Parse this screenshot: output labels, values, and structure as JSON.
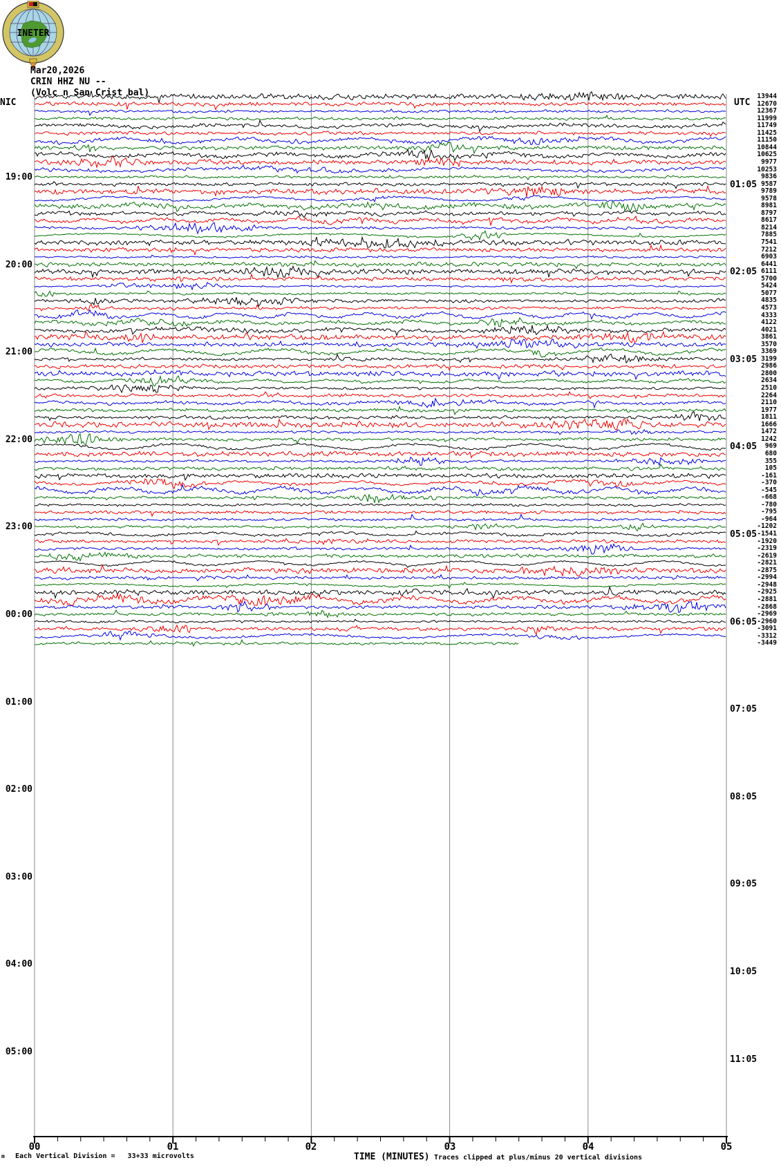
{
  "header": {
    "date": "Mar20,2026",
    "station": "CRIN HHZ NU --",
    "description": "(Volc n San Crist bal)",
    "logo_text": "INETER"
  },
  "left_axis": {
    "region_label": "NIC",
    "hour_labels": [
      "19:00",
      "20:00",
      "21:00",
      "22:00",
      "23:00",
      "00:00",
      "01:00",
      "02:00",
      "03:00",
      "04:00",
      "05:00"
    ]
  },
  "right_axis": {
    "header": "UTC",
    "hour_labels": [
      "01:05",
      "02:05",
      "03:05",
      "04:05",
      "05:05",
      "06:05",
      "07:05",
      "08:05",
      "09:05",
      "10:05",
      "11:05"
    ]
  },
  "x_axis": {
    "tick_labels": [
      "00",
      "01",
      "02",
      "03",
      "04",
      "05"
    ],
    "title": "TIME (MINUTES)",
    "corner_glyph": "m",
    "scale_note": "Each Vertical Division =   33+33 microvolts",
    "clip_note": "Traces clipped at plus/minus 20 vertical divisions"
  },
  "colors": {
    "trace_cycle": [
      "#000000",
      "#f00000",
      "#0000e0",
      "#007100"
    ],
    "grid": "#888888",
    "axis": "#000000"
  },
  "chart_data": {
    "type": "line",
    "title": "CRIN HHZ NU -- (Volc n San Crist bal)",
    "date": "Mar20,2026",
    "xlabel": "TIME (MINUTES)",
    "x_range_minutes": [
      0,
      5
    ],
    "minutes_per_trace": 5,
    "traces_per_hour": 12,
    "trace_count": 76,
    "last_trace_fraction": 0.7,
    "grid": "vertical minute lines",
    "local_hour_labels": [
      "19:00",
      "20:00",
      "21:00",
      "22:00",
      "23:00",
      "00:00",
      "01:00",
      "02:00",
      "03:00",
      "04:00",
      "05:00"
    ],
    "utc_hour_labels": [
      "01:05",
      "02:05",
      "03:05",
      "04:05",
      "05:05",
      "06:05",
      "07:05",
      "08:05",
      "09:05",
      "10:05",
      "11:05"
    ],
    "trace_dc_offsets": [
      13944,
      12670,
      12367,
      11999,
      11749,
      11425,
      11150,
      10844,
      10625,
      9977,
      10253,
      9836,
      9587,
      9789,
      9578,
      8981,
      8797,
      8617,
      8214,
      7885,
      7541,
      7212,
      6903,
      6441,
      6111,
      5700,
      5424,
      5077,
      4835,
      4573,
      4333,
      4122,
      4021,
      3861,
      3570,
      3369,
      3199,
      2986,
      2800,
      2634,
      2510,
      2264,
      2110,
      1977,
      1811,
      1666,
      1472,
      1242,
      969,
      680,
      355,
      105,
      -161,
      -370,
      -545,
      -668,
      -780,
      -795,
      -964,
      -1202,
      -1541,
      -1920,
      -2319,
      -2619,
      -2821,
      -2875,
      -2994,
      -2948,
      -2925,
      -2881,
      -2868,
      -2969,
      -2960,
      -3091,
      -3312,
      -3449
    ],
    "y_scale_note": "Each Vertical Division = 33+33 microvolts",
    "clipping_note": "Traces clipped at plus/minus 20 vertical divisions"
  }
}
